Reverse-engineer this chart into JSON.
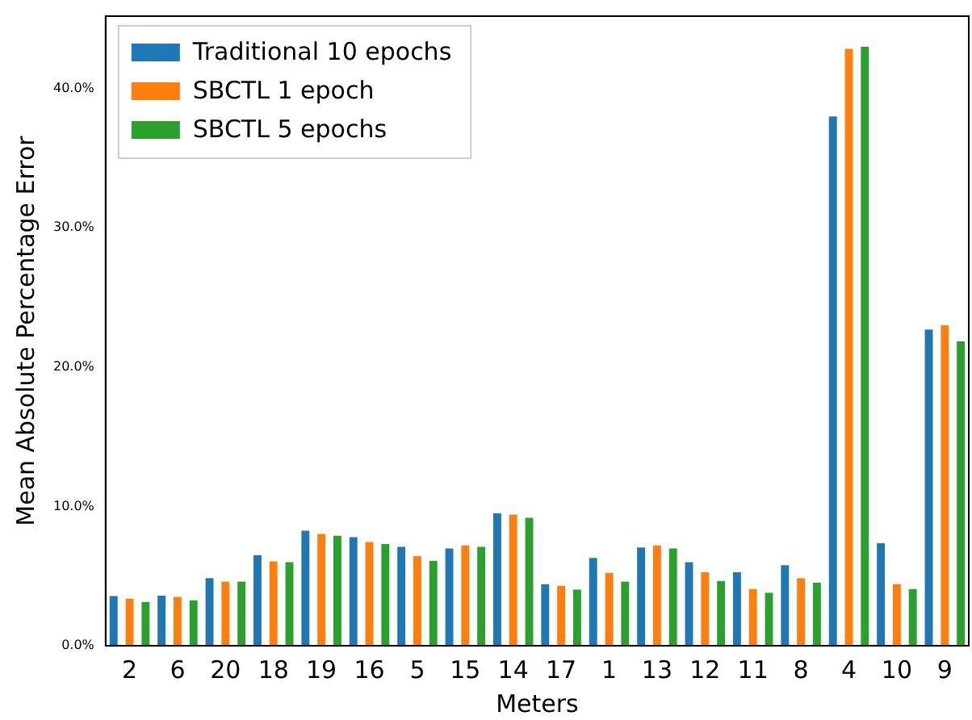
{
  "chart_data": {
    "type": "bar",
    "xlabel": "Meters",
    "ylabel": "Mean Absolute Percentage Error",
    "categories": [
      "2",
      "6",
      "20",
      "18",
      "19",
      "16",
      "5",
      "15",
      "14",
      "17",
      "1",
      "13",
      "12",
      "11",
      "8",
      "4",
      "10",
      "9"
    ],
    "series": [
      {
        "name": "Traditional 10 epochs",
        "color": "#1f77b4",
        "values": [
          3.57,
          3.6,
          4.85,
          6.5,
          8.26,
          7.8,
          7.1,
          6.98,
          9.5,
          4.42,
          6.3,
          7.05,
          6.0,
          5.27,
          5.78,
          38.0,
          7.36,
          22.7
        ]
      },
      {
        "name": "SBCTL 1 epoch",
        "color": "#ff7f0e",
        "values": [
          3.37,
          3.5,
          4.6,
          6.05,
          8.02,
          7.44,
          6.43,
          7.2,
          9.42,
          4.3,
          5.23,
          7.2,
          5.27,
          4.07,
          4.85,
          42.85,
          4.42,
          23.0
        ]
      },
      {
        "name": "SBCTL 5 epochs",
        "color": "#2ca02c",
        "values": [
          3.14,
          3.26,
          4.6,
          6.0,
          7.9,
          7.3,
          6.1,
          7.1,
          9.18,
          4.03,
          4.6,
          6.98,
          4.65,
          3.8,
          4.53,
          43.0,
          4.07,
          21.85
        ]
      }
    ],
    "ylim": [
      0,
      45.2
    ],
    "yticks": [
      {
        "value": 0,
        "label": "0.0%"
      },
      {
        "value": 10,
        "label": "10.0%"
      },
      {
        "value": 20,
        "label": "20.0%"
      },
      {
        "value": 30,
        "label": "30.0%"
      },
      {
        "value": 40,
        "label": "40.0%"
      }
    ],
    "grid": false,
    "legend": "top left"
  }
}
